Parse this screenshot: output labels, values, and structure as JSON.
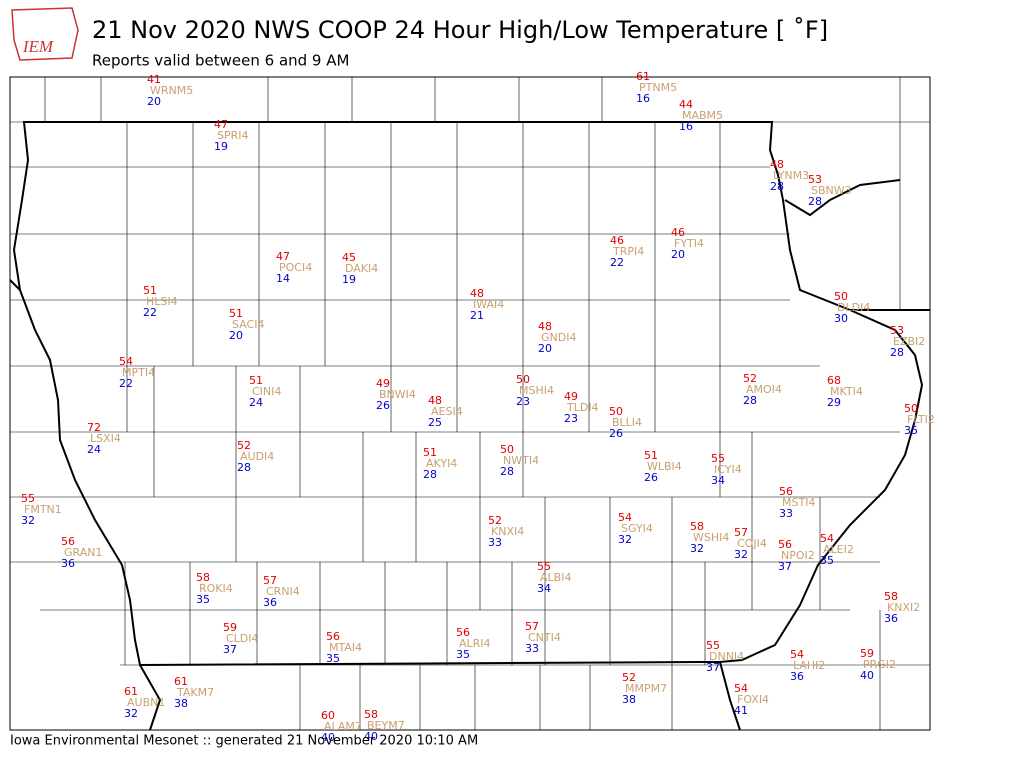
{
  "header": {
    "logo": "IEM",
    "title": "21 Nov 2020 NWS COOP 24 Hour High/Low Temperature [ ˚F]",
    "subtitle": "Reports valid between 6 and 9 AM"
  },
  "footer": "Iowa Environmental Mesonet :: generated 21 November 2020 10:10 AM",
  "stations": [
    {
      "high": 41,
      "id": "WRNM5",
      "low": 20
    },
    {
      "high": 61,
      "id": "PTNM5",
      "low": 16
    },
    {
      "high": 44,
      "id": "MABM5",
      "low": 16
    },
    {
      "high": 47,
      "id": "SPRI4",
      "low": 19
    },
    {
      "high": 48,
      "id": "LYNM3",
      "low": 28
    },
    {
      "high": 53,
      "id": "SBNW3",
      "low": 28
    },
    {
      "high": 46,
      "id": "TRPI4",
      "low": 22
    },
    {
      "high": 46,
      "id": "FYTI4",
      "low": 20
    },
    {
      "high": 47,
      "id": "POCI4",
      "low": 14
    },
    {
      "high": 45,
      "id": "DAKI4",
      "low": 19
    },
    {
      "high": 51,
      "id": "HLSI4",
      "low": 22
    },
    {
      "high": 48,
      "id": "IWAI4",
      "low": 21
    },
    {
      "high": 50,
      "id": "DLDI4",
      "low": 30
    },
    {
      "high": 51,
      "id": "SACI4",
      "low": 20
    },
    {
      "high": 48,
      "id": "GNDI4",
      "low": 20
    },
    {
      "high": 53,
      "id": "EZBI2",
      "low": 28
    },
    {
      "high": 54,
      "id": "MPTI4",
      "low": 22
    },
    {
      "high": 51,
      "id": "CINI4",
      "low": 24
    },
    {
      "high": 49,
      "id": "BNWI4",
      "low": 26
    },
    {
      "high": 50,
      "id": "MSHI4",
      "low": 23
    },
    {
      "high": 52,
      "id": "AMOI4",
      "low": 28
    },
    {
      "high": 68,
      "id": "MKTI4",
      "low": 29
    },
    {
      "high": 48,
      "id": "AESI4",
      "low": 25
    },
    {
      "high": 49,
      "id": "TLDI4",
      "low": 23
    },
    {
      "high": 50,
      "id": "BLLI4",
      "low": 26
    },
    {
      "high": 50,
      "id": "FLTI2",
      "low": 35
    },
    {
      "high": 72,
      "id": "LSXI4",
      "low": 24
    },
    {
      "high": 52,
      "id": "AUDI4",
      "low": 28
    },
    {
      "high": 51,
      "id": "AKYI4",
      "low": 28
    },
    {
      "high": 50,
      "id": "NWTI4",
      "low": 28
    },
    {
      "high": 51,
      "id": "WLBI4",
      "low": 26
    },
    {
      "high": 55,
      "id": "ICYI4",
      "low": 34
    },
    {
      "high": 55,
      "id": "FMTN1",
      "low": 32
    },
    {
      "high": 56,
      "id": "MSTI4",
      "low": 33
    },
    {
      "high": 52,
      "id": "KNXI4",
      "low": 33
    },
    {
      "high": 54,
      "id": "SGYI4",
      "low": 32
    },
    {
      "high": 58,
      "id": "WSHI4",
      "low": 32
    },
    {
      "high": 57,
      "id": "COJI4",
      "low": 32
    },
    {
      "high": 56,
      "id": "GRAN1",
      "low": 36
    },
    {
      "high": 56,
      "id": "NPOI2",
      "low": 37
    },
    {
      "high": 54,
      "id": "ALEI2",
      "low": 35
    },
    {
      "high": 55,
      "id": "ALBI4",
      "low": 34
    },
    {
      "high": 58,
      "id": "ROKI4",
      "low": 35
    },
    {
      "high": 57,
      "id": "CRNI4",
      "low": 36
    },
    {
      "high": 58,
      "id": "KNXI2",
      "low": 36
    },
    {
      "high": 59,
      "id": "CLDI4",
      "low": 37
    },
    {
      "high": 56,
      "id": "MTAI4",
      "low": 35
    },
    {
      "high": 56,
      "id": "ALRI4",
      "low": 35
    },
    {
      "high": 57,
      "id": "CNTI4",
      "low": 33
    },
    {
      "high": 55,
      "id": "DNNI4",
      "low": 37
    },
    {
      "high": 54,
      "id": "LAHI2",
      "low": 36
    },
    {
      "high": 59,
      "id": "PRGI2",
      "low": 40
    },
    {
      "high": 61,
      "id": "TAKM7",
      "low": 38
    },
    {
      "high": 52,
      "id": "MMPM7",
      "low": 38
    },
    {
      "high": 61,
      "id": "AUBN1",
      "low": 32
    },
    {
      "high": 54,
      "id": "FOXI4",
      "low": 41
    },
    {
      "high": 60,
      "id": "ALAM7",
      "low": 40
    },
    {
      "high": 58,
      "id": "BEYM7",
      "low": 40
    }
  ]
}
